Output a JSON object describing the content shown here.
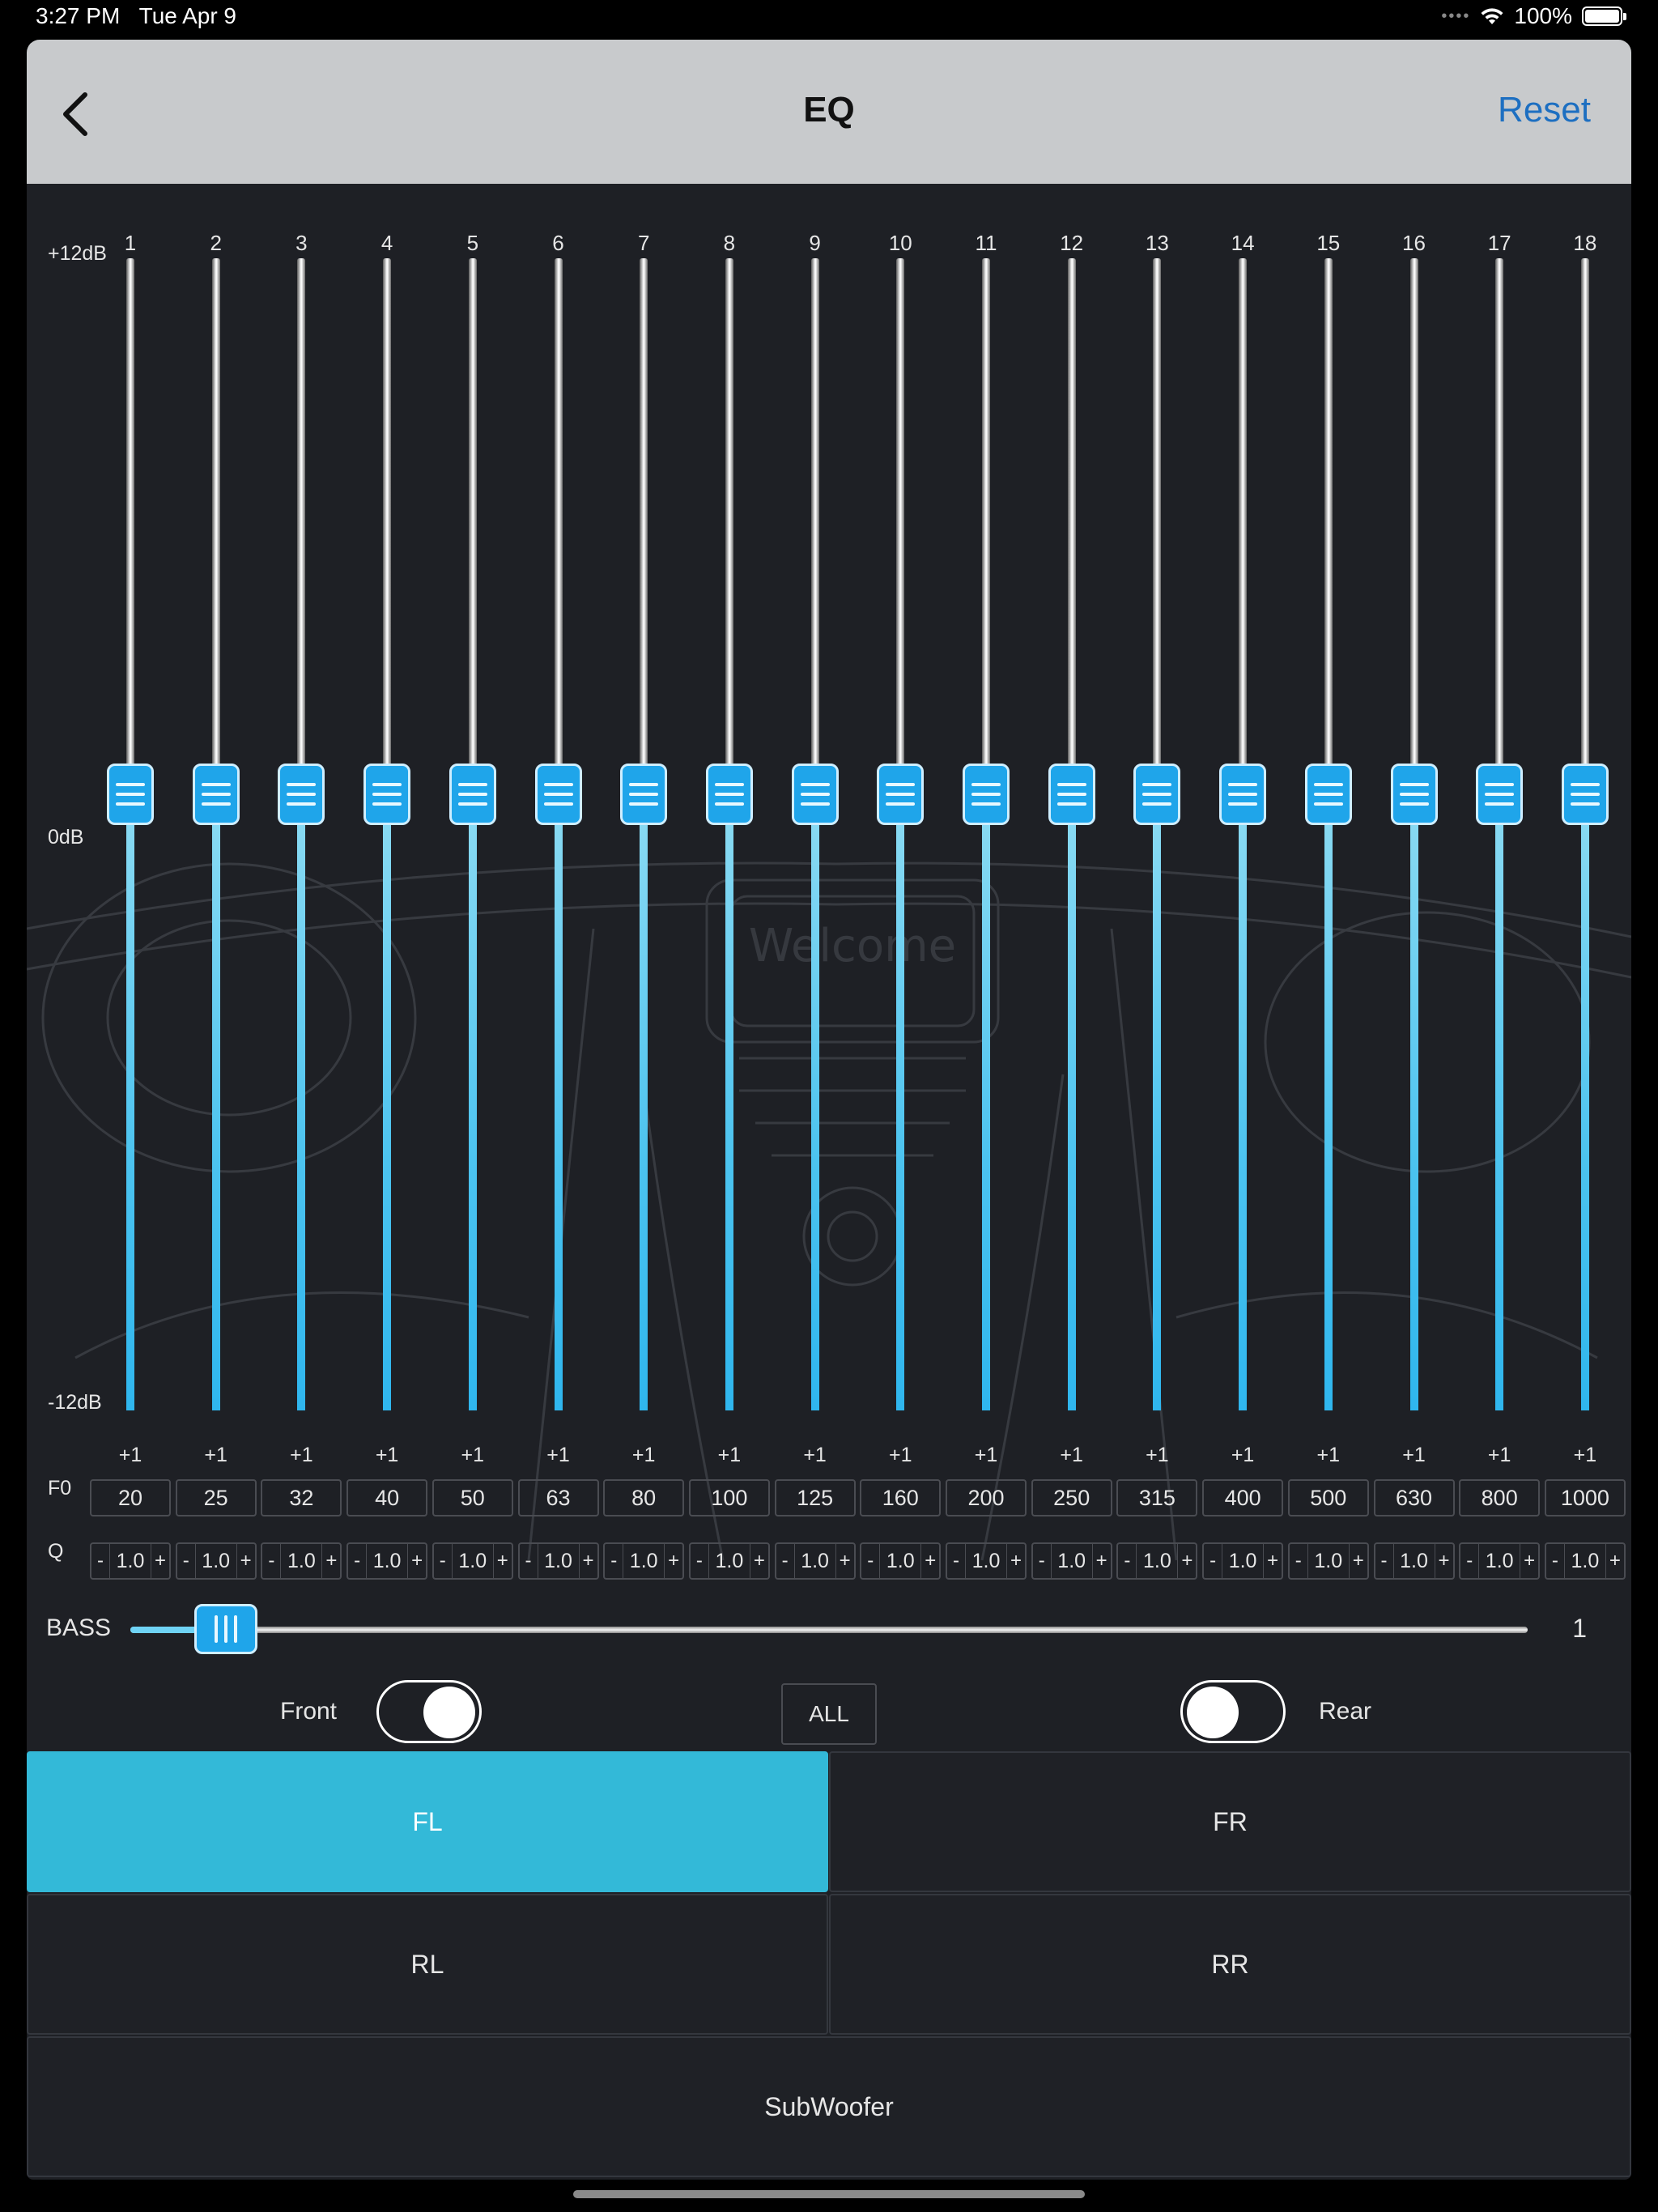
{
  "status_bar": {
    "time": "3:27 PM",
    "date": "Tue Apr 9",
    "battery": "100%"
  },
  "nav": {
    "title": "EQ",
    "reset_label": "Reset"
  },
  "eq": {
    "db_top": "+12dB",
    "db_mid": "0dB",
    "db_bottom": "-12dB",
    "f0_label": "F0",
    "q_label": "Q",
    "q_minus": "-",
    "q_plus": "+",
    "bands": [
      {
        "num": "1",
        "gain": "+1",
        "f0": "20",
        "q": "1.0"
      },
      {
        "num": "2",
        "gain": "+1",
        "f0": "25",
        "q": "1.0"
      },
      {
        "num": "3",
        "gain": "+1",
        "f0": "32",
        "q": "1.0"
      },
      {
        "num": "4",
        "gain": "+1",
        "f0": "40",
        "q": "1.0"
      },
      {
        "num": "5",
        "gain": "+1",
        "f0": "50",
        "q": "1.0"
      },
      {
        "num": "6",
        "gain": "+1",
        "f0": "63",
        "q": "1.0"
      },
      {
        "num": "7",
        "gain": "+1",
        "f0": "80",
        "q": "1.0"
      },
      {
        "num": "8",
        "gain": "+1",
        "f0": "100",
        "q": "1.0"
      },
      {
        "num": "9",
        "gain": "+1",
        "f0": "125",
        "q": "1.0"
      },
      {
        "num": "10",
        "gain": "+1",
        "f0": "160",
        "q": "1.0"
      },
      {
        "num": "11",
        "gain": "+1",
        "f0": "200",
        "q": "1.0"
      },
      {
        "num": "12",
        "gain": "+1",
        "f0": "250",
        "q": "1.0"
      },
      {
        "num": "13",
        "gain": "+1",
        "f0": "315",
        "q": "1.0"
      },
      {
        "num": "14",
        "gain": "+1",
        "f0": "400",
        "q": "1.0"
      },
      {
        "num": "15",
        "gain": "+1",
        "f0": "500",
        "q": "1.0"
      },
      {
        "num": "16",
        "gain": "+1",
        "f0": "630",
        "q": "1.0"
      },
      {
        "num": "17",
        "gain": "+1",
        "f0": "800",
        "q": "1.0"
      },
      {
        "num": "18",
        "gain": "+1",
        "f0": "1000",
        "q": "1.0"
      }
    ]
  },
  "bass": {
    "label": "BASS",
    "value": "1"
  },
  "toggles": {
    "front_label": "Front",
    "front_on": true,
    "all_label": "ALL",
    "rear_label": "Rear",
    "rear_on": false
  },
  "channels": {
    "fl": "FL",
    "fr": "FR",
    "rl": "RL",
    "rr": "RR",
    "sub": "SubWoofer",
    "selected": "FL"
  },
  "background_text": "Welcome",
  "colors": {
    "accent": "#33b9d8",
    "slider_blue": "#1fa5ea",
    "link": "#1d6fc1",
    "panel": "#1e2025"
  }
}
